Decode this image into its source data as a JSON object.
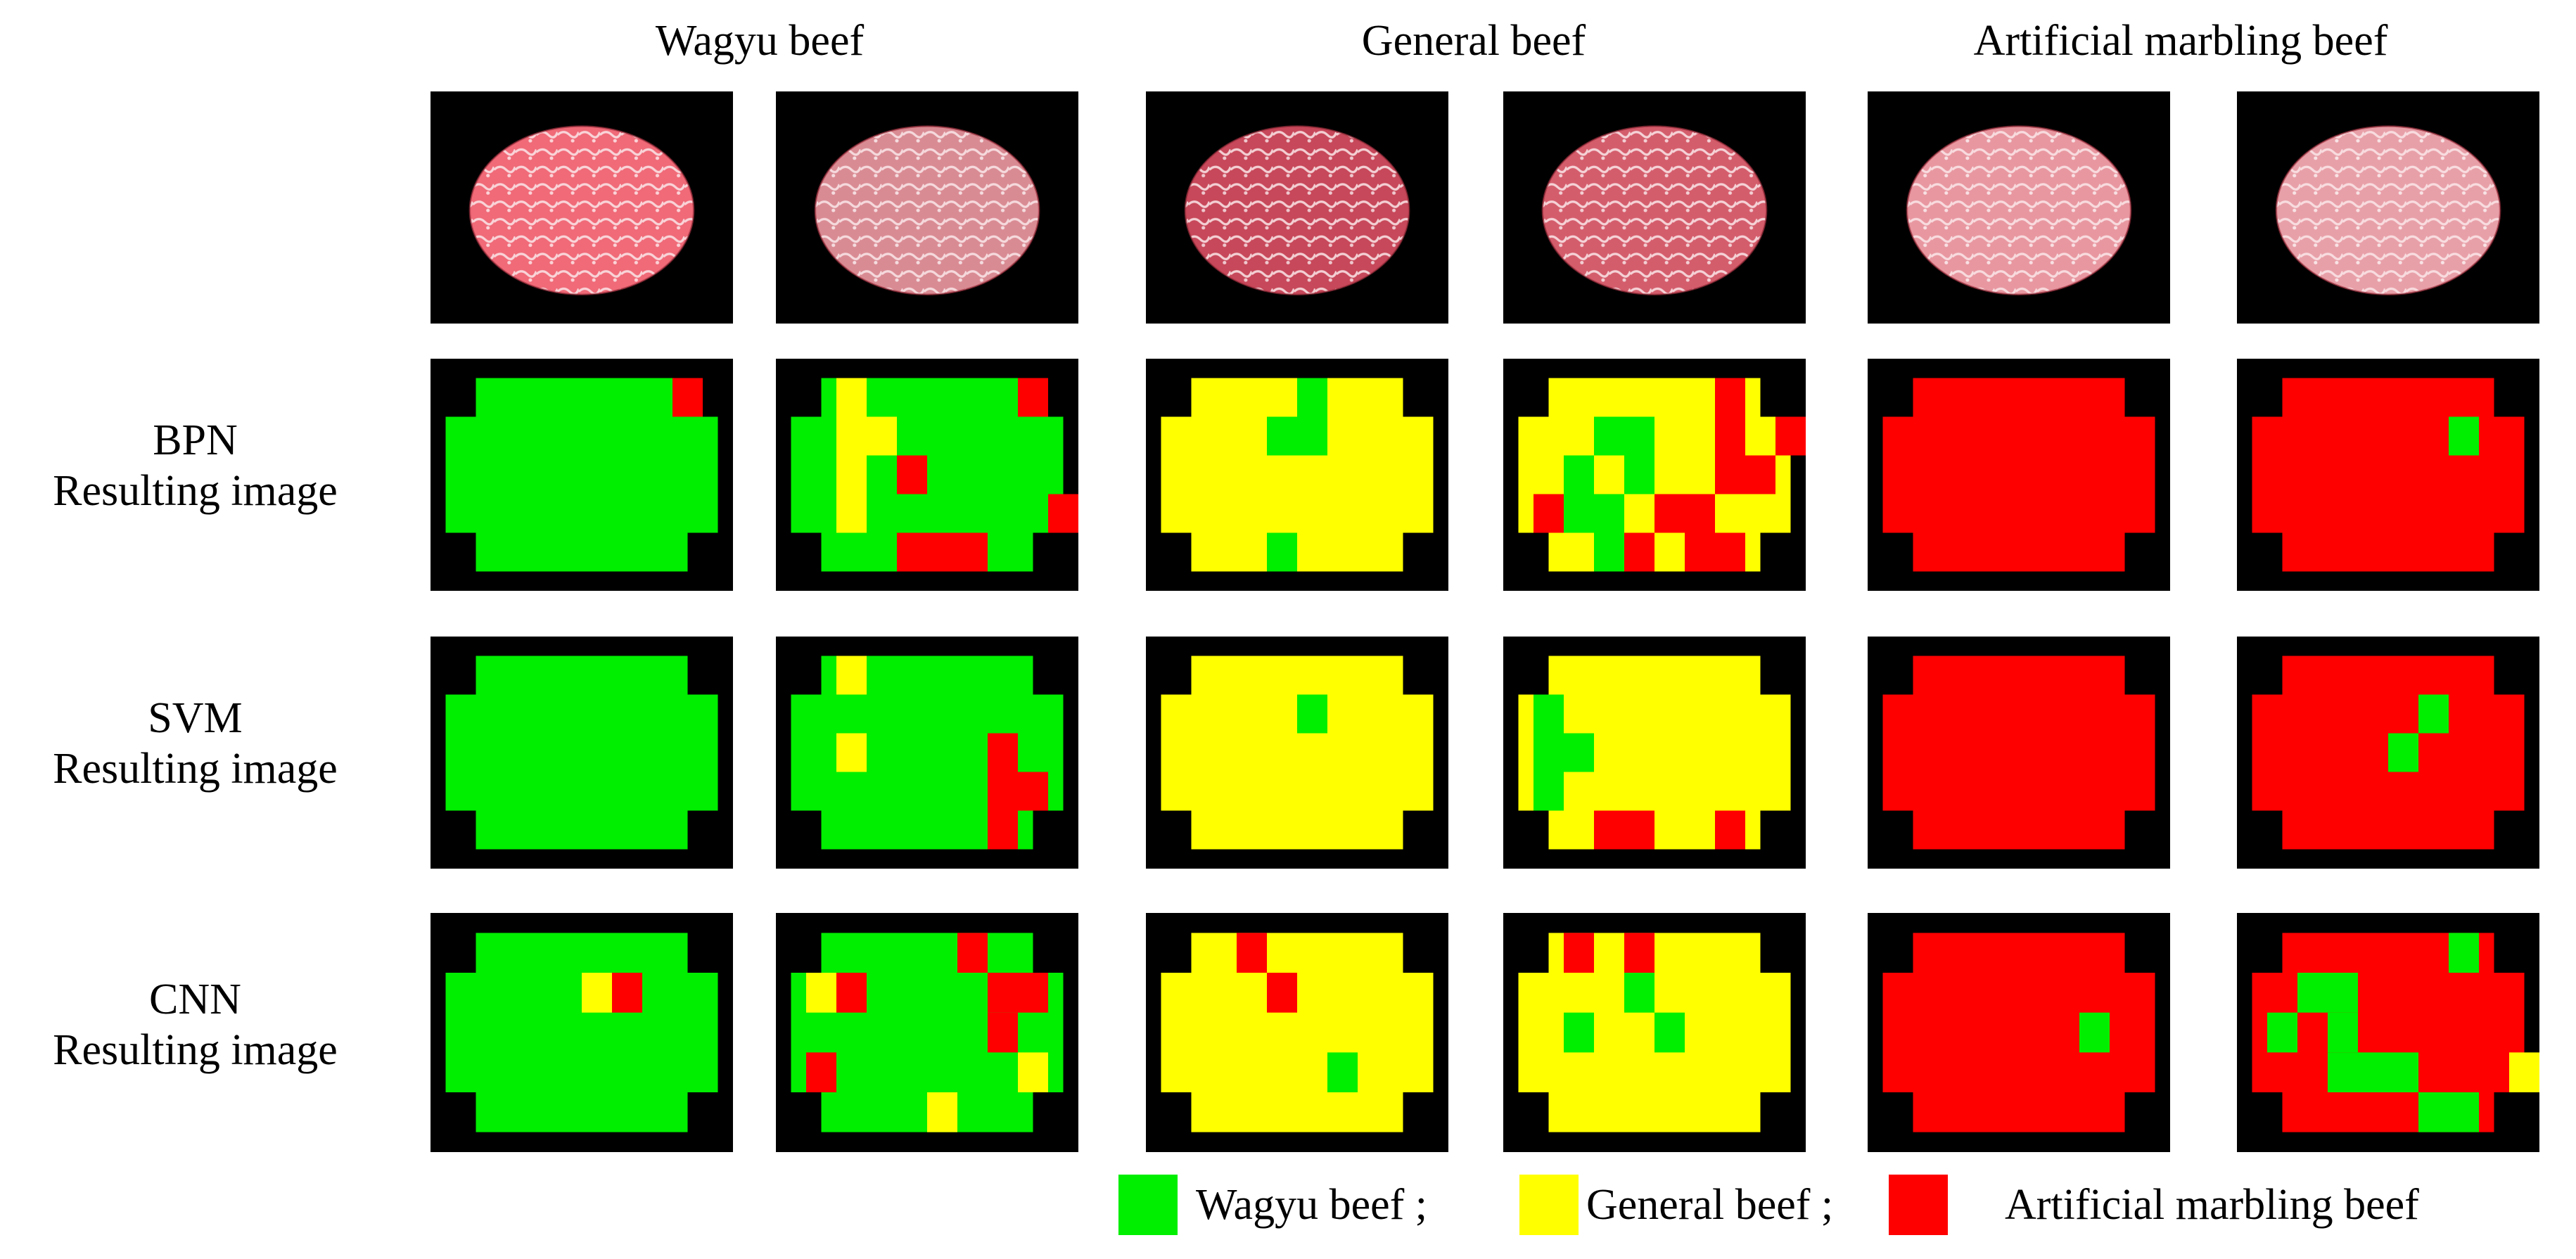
{
  "colors": {
    "wagyu": "#00ee00",
    "general": "#ffff00",
    "artificial": "#ff0000",
    "background": "#000000"
  },
  "column_headers": [
    {
      "label": "Wagyu beef"
    },
    {
      "label": "General beef"
    },
    {
      "label": "Artificial marbling beef"
    }
  ],
  "row_labels": [
    {
      "method": "BPN",
      "caption": "Resulting image"
    },
    {
      "method": "SVM",
      "caption": "Resulting image"
    },
    {
      "method": "CNN",
      "caption": "Resulting image"
    }
  ],
  "photos": [
    {
      "category": "Wagyu beef",
      "tone": "#f06a78"
    },
    {
      "category": "Wagyu beef",
      "tone": "#d98b93"
    },
    {
      "category": "General beef",
      "tone": "#c7485a"
    },
    {
      "category": "General beef",
      "tone": "#d45d6c"
    },
    {
      "category": "Artificial marbling beef",
      "tone": "#e897a0"
    },
    {
      "category": "Artificial marbling beef",
      "tone": "#e8a0a8"
    }
  ],
  "grid": {
    "cols": 10,
    "rows": 7
  },
  "results": {
    "BPN": [
      {
        "base": "wagyu",
        "patches": [
          [
            7,
            0,
            "artificial"
          ]
        ]
      },
      {
        "base": "wagyu",
        "patches": [
          [
            1,
            0,
            "general"
          ],
          [
            1,
            1,
            "general"
          ],
          [
            2,
            1,
            "general"
          ],
          [
            1,
            2,
            "general"
          ],
          [
            1,
            3,
            "general"
          ],
          [
            3,
            2,
            "artificial"
          ],
          [
            7,
            0,
            "artificial"
          ],
          [
            3,
            4,
            "artificial"
          ],
          [
            4,
            4,
            "artificial"
          ],
          [
            5,
            4,
            "artificial"
          ],
          [
            8,
            3,
            "artificial"
          ]
        ]
      },
      {
        "base": "general",
        "patches": [
          [
            4,
            0,
            "wagyu"
          ],
          [
            3,
            1,
            "wagyu"
          ],
          [
            4,
            1,
            "wagyu"
          ],
          [
            3,
            4,
            "wagyu"
          ]
        ]
      },
      {
        "base": "general",
        "patches": [
          [
            2,
            1,
            "wagyu"
          ],
          [
            3,
            1,
            "wagyu"
          ],
          [
            1,
            2,
            "wagyu"
          ],
          [
            3,
            2,
            "wagyu"
          ],
          [
            1,
            3,
            "wagyu"
          ],
          [
            2,
            3,
            "wagyu"
          ],
          [
            2,
            4,
            "wagyu"
          ],
          [
            6,
            0,
            "artificial"
          ],
          [
            6,
            1,
            "artificial"
          ],
          [
            8,
            1,
            "artificial"
          ],
          [
            6,
            2,
            "artificial"
          ],
          [
            7,
            2,
            "artificial"
          ],
          [
            0,
            3,
            "artificial"
          ],
          [
            4,
            3,
            "artificial"
          ],
          [
            5,
            3,
            "artificial"
          ],
          [
            3,
            4,
            "artificial"
          ],
          [
            5,
            4,
            "artificial"
          ],
          [
            6,
            4,
            "artificial"
          ]
        ]
      },
      {
        "base": "artificial",
        "patches": []
      },
      {
        "base": "artificial",
        "patches": [
          [
            6,
            1,
            "wagyu"
          ]
        ]
      }
    ],
    "SVM": [
      {
        "base": "wagyu",
        "patches": []
      },
      {
        "base": "wagyu",
        "patches": [
          [
            1,
            0,
            "general"
          ],
          [
            1,
            2,
            "general"
          ],
          [
            6,
            2,
            "artificial"
          ],
          [
            6,
            3,
            "artificial"
          ],
          [
            7,
            3,
            "artificial"
          ],
          [
            6,
            4,
            "artificial"
          ]
        ]
      },
      {
        "base": "general",
        "patches": [
          [
            4,
            1,
            "wagyu"
          ]
        ]
      },
      {
        "base": "general",
        "patches": [
          [
            0,
            1,
            "wagyu"
          ],
          [
            0,
            2,
            "wagyu"
          ],
          [
            1,
            2,
            "wagyu"
          ],
          [
            0,
            3,
            "wagyu"
          ],
          [
            2,
            4,
            "artificial"
          ],
          [
            3,
            4,
            "artificial"
          ],
          [
            6,
            4,
            "artificial"
          ]
        ]
      },
      {
        "base": "artificial",
        "patches": []
      },
      {
        "base": "artificial",
        "patches": [
          [
            5,
            1,
            "wagyu"
          ],
          [
            4,
            2,
            "wagyu"
          ]
        ]
      }
    ],
    "CNN": [
      {
        "base": "wagyu",
        "patches": [
          [
            4,
            1,
            "general"
          ],
          [
            5,
            1,
            "artificial"
          ]
        ]
      },
      {
        "base": "wagyu",
        "patches": [
          [
            5,
            0,
            "artificial"
          ],
          [
            1,
            1,
            "artificial"
          ],
          [
            6,
            1,
            "artificial"
          ],
          [
            7,
            1,
            "artificial"
          ],
          [
            6,
            2,
            "artificial"
          ],
          [
            0,
            3,
            "artificial"
          ],
          [
            0,
            1,
            "general"
          ],
          [
            7,
            3,
            "general"
          ],
          [
            4,
            4,
            "general"
          ]
        ]
      },
      {
        "base": "general",
        "patches": [
          [
            2,
            0,
            "artificial"
          ],
          [
            3,
            1,
            "artificial"
          ],
          [
            5,
            3,
            "wagyu"
          ]
        ]
      },
      {
        "base": "general",
        "patches": [
          [
            1,
            0,
            "artificial"
          ],
          [
            3,
            0,
            "artificial"
          ],
          [
            3,
            1,
            "wagyu"
          ],
          [
            1,
            2,
            "wagyu"
          ],
          [
            4,
            2,
            "wagyu"
          ]
        ]
      },
      {
        "base": "artificial",
        "patches": [
          [
            6,
            2,
            "wagyu"
          ]
        ]
      },
      {
        "base": "artificial",
        "patches": [
          [
            1,
            1,
            "wagyu"
          ],
          [
            2,
            1,
            "wagyu"
          ],
          [
            6,
            0,
            "wagyu"
          ],
          [
            0,
            2,
            "wagyu"
          ],
          [
            2,
            2,
            "wagyu"
          ],
          [
            2,
            3,
            "wagyu"
          ],
          [
            3,
            3,
            "wagyu"
          ],
          [
            4,
            3,
            "wagyu"
          ],
          [
            5,
            4,
            "wagyu"
          ],
          [
            6,
            4,
            "wagyu"
          ],
          [
            8,
            3,
            "general"
          ]
        ]
      }
    ]
  },
  "legend": [
    {
      "color": "wagyu",
      "label": "Wagyu beef ;"
    },
    {
      "color": "general",
      "label": "General beef ;"
    },
    {
      "color": "artificial",
      "label": "Artificial marbling beef"
    }
  ]
}
